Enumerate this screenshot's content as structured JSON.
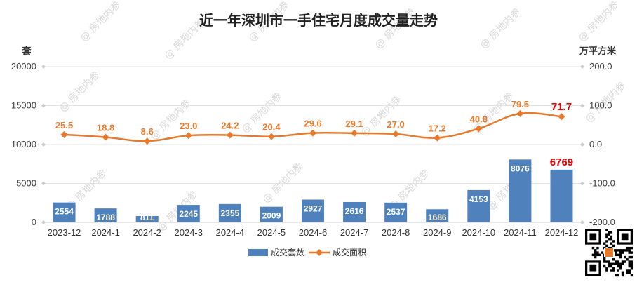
{
  "chart_data": {
    "type": "bar",
    "title": "近一年深圳市一手住宅月度成交量走势",
    "categories": [
      "2023-12",
      "2024-1",
      "2024-2",
      "2024-3",
      "2024-4",
      "2024-5",
      "2024-6",
      "2024-7",
      "2024-8",
      "2024-9",
      "2024-10",
      "2024-11",
      "2024-12"
    ],
    "series": [
      {
        "name": "成交套数",
        "type": "bar",
        "axis": "left",
        "color": "#4F81BD",
        "values": [
          2554,
          1788,
          811,
          2245,
          2355,
          2009,
          2927,
          2616,
          2537,
          1686,
          4153,
          8076,
          6769
        ],
        "labels": [
          "2554",
          "1788",
          "811",
          "2245",
          "2355",
          "2009",
          "2927",
          "2616",
          "2537",
          "1686",
          "4153",
          "8076",
          "6769"
        ]
      },
      {
        "name": "成交面积",
        "type": "line",
        "axis": "right",
        "color": "#E8792B",
        "values": [
          25.5,
          18.8,
          8.6,
          23.0,
          24.2,
          20.4,
          29.6,
          29.1,
          27.0,
          17.2,
          40.8,
          79.5,
          71.7
        ],
        "labels": [
          "25.5",
          "18.8",
          "8.6",
          "23.0",
          "24.2",
          "20.4",
          "29.6",
          "29.1",
          "27.0",
          "17.2",
          "40.8",
          "79.5",
          "71.7"
        ]
      }
    ],
    "highlight_color": "#E00000",
    "highlight_index": 12,
    "y_left": {
      "unit": "套",
      "range": [
        0,
        20000
      ],
      "ticks": [
        0,
        5000,
        10000,
        15000,
        20000
      ],
      "tick_labels": [
        "0",
        "5000",
        "10000",
        "15000",
        "20000"
      ]
    },
    "y_right": {
      "unit": "万平方米",
      "range": [
        -200,
        200
      ],
      "ticks": [
        -200,
        -100,
        0,
        100,
        200
      ],
      "tick_labels": [
        "-200.0",
        "-100.0",
        "0.0",
        "100.0",
        "200.0"
      ]
    },
    "legend": {
      "placement": "bottom-center",
      "items": [
        "成交套数",
        "成交面积"
      ]
    },
    "grid": true
  },
  "watermark_text": "@ 房地内参",
  "qr_code": "qr-code-icon"
}
